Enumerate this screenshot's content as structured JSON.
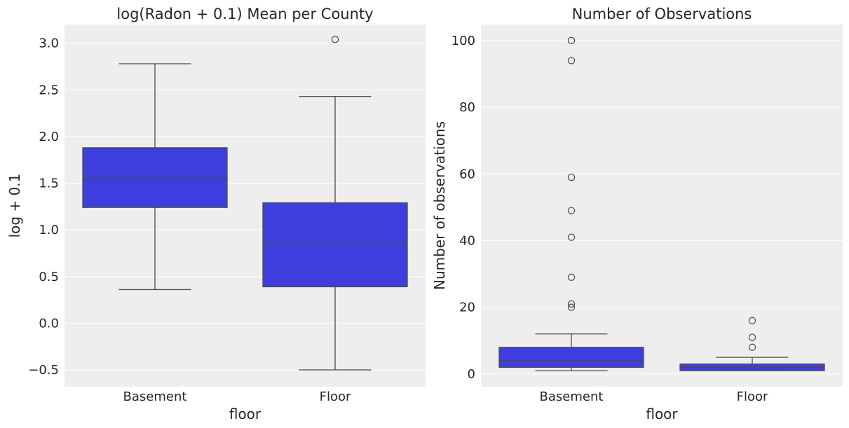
{
  "chart_data": [
    {
      "type": "boxplot",
      "title": "log(Radon + 0.1) Mean per County",
      "xlabel": "floor",
      "ylabel": "log + 0.1",
      "categories": [
        "Basement",
        "Floor"
      ],
      "ylim": [
        -0.68,
        3.2
      ],
      "yticks": [
        -0.5,
        0.0,
        0.5,
        1.0,
        1.5,
        2.0,
        2.5,
        3.0
      ],
      "ytick_labels": [
        "−0.5",
        "0.0",
        "0.5",
        "1.0",
        "1.5",
        "2.0",
        "2.5",
        "3.0"
      ],
      "grid": true,
      "boxes": [
        {
          "category": "Basement",
          "whisker_low": 0.36,
          "q1": 1.24,
          "median": 1.54,
          "q3": 1.88,
          "whisker_high": 2.78,
          "outliers": []
        },
        {
          "category": "Floor",
          "whisker_low": -0.5,
          "q1": 0.39,
          "median": 0.85,
          "q3": 1.29,
          "whisker_high": 2.43,
          "outliers": [
            3.04
          ]
        }
      ],
      "box_color": "#3e3edf",
      "line_color": "#4a4a4a",
      "background": "#eeeeee"
    },
    {
      "type": "boxplot",
      "title": "Number of Observations",
      "xlabel": "floor",
      "ylabel": "Number of observations",
      "categories": [
        "Basement",
        "Floor"
      ],
      "ylim": [
        -3.8,
        104.8
      ],
      "yticks": [
        0,
        20,
        40,
        60,
        80,
        100
      ],
      "ytick_labels": [
        "0",
        "20",
        "40",
        "60",
        "80",
        "100"
      ],
      "grid": true,
      "boxes": [
        {
          "category": "Basement",
          "whisker_low": 1,
          "q1": 2,
          "median": 4,
          "q3": 8,
          "whisker_high": 12,
          "outliers": [
            20,
            21,
            29,
            41,
            49,
            59,
            94,
            100
          ]
        },
        {
          "category": "Floor",
          "whisker_low": 1,
          "q1": 1,
          "median": 2,
          "q3": 3,
          "whisker_high": 5,
          "outliers": [
            8,
            11,
            16
          ]
        }
      ],
      "box_color": "#3e3edf",
      "line_color": "#4a4a4a",
      "background": "#eeeeee"
    }
  ]
}
